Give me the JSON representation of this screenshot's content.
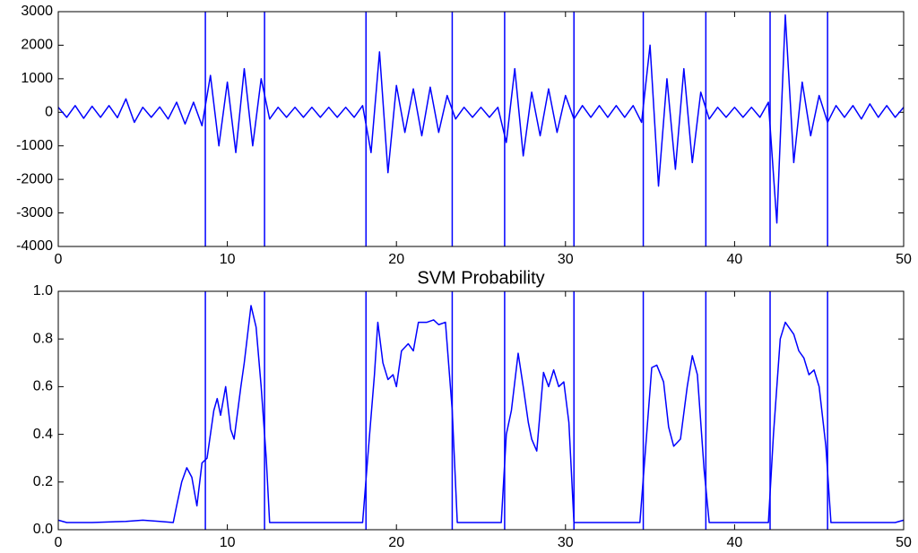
{
  "chart_data": [
    {
      "type": "line",
      "color": "#0000ff",
      "x": [
        0,
        0.5,
        1,
        1.5,
        2,
        2.5,
        3,
        3.5,
        4,
        4.5,
        5,
        5.5,
        6,
        6.5,
        7,
        7.5,
        8,
        8.5,
        9,
        9.5,
        10,
        10.5,
        11,
        11.5,
        12,
        12.5,
        13,
        13.5,
        14,
        14.5,
        15,
        15.5,
        16,
        16.5,
        17,
        17.5,
        18,
        18.5,
        19,
        19.5,
        20,
        20.5,
        21,
        21.5,
        22,
        22.5,
        23,
        23.5,
        24,
        24.5,
        25,
        25.5,
        26,
        26.5,
        27,
        27.5,
        28,
        28.5,
        29,
        29.5,
        30,
        30.5,
        31,
        31.5,
        32,
        32.5,
        33,
        33.5,
        34,
        34.5,
        35,
        35.5,
        36,
        36.5,
        37,
        37.5,
        38,
        38.5,
        39,
        39.5,
        40,
        40.5,
        41,
        41.5,
        42,
        42.5,
        43,
        43.5,
        44,
        44.5,
        45,
        45.5,
        46,
        46.5,
        47,
        47.5,
        48,
        48.5,
        49,
        49.5,
        50
      ],
      "values": [
        150,
        -150,
        200,
        -180,
        180,
        -150,
        200,
        -160,
        400,
        -300,
        150,
        -150,
        160,
        -200,
        300,
        -350,
        300,
        -400,
        1100,
        -1000,
        900,
        -1200,
        1300,
        -1000,
        1000,
        -200,
        150,
        -150,
        150,
        -150,
        150,
        -150,
        150,
        -150,
        150,
        -150,
        200,
        -1200,
        1800,
        -1800,
        800,
        -600,
        700,
        -700,
        750,
        -600,
        500,
        -200,
        150,
        -150,
        150,
        -150,
        150,
        -900,
        1300,
        -1300,
        600,
        -700,
        700,
        -600,
        500,
        -200,
        200,
        -150,
        200,
        -150,
        200,
        -150,
        200,
        -300,
        2000,
        -2200,
        1000,
        -1700,
        1300,
        -1500,
        600,
        -200,
        150,
        -150,
        150,
        -150,
        150,
        -150,
        300,
        -3300,
        2900,
        -1500,
        900,
        -700,
        500,
        -300,
        200,
        -150,
        200,
        -200,
        250,
        -150,
        200,
        -150,
        150
      ],
      "vlines": [
        8.7,
        12.2,
        18.2,
        23.3,
        26.4,
        30.5,
        34.6,
        38.3,
        42.1,
        45.5
      ],
      "xlim": [
        0,
        50
      ],
      "xticks": [
        0,
        10,
        20,
        30,
        40,
        50
      ],
      "ylim": [
        -4000,
        3000
      ],
      "yticks": [
        -4000,
        -3000,
        -2000,
        -1000,
        0,
        1000,
        2000,
        3000
      ]
    },
    {
      "type": "line",
      "title": "SVM Probability",
      "color": "#0000ff",
      "x": [
        0,
        0.5,
        2,
        4,
        5,
        6,
        6.8,
        7,
        7.3,
        7.6,
        7.9,
        8.2,
        8.5,
        8.8,
        9.2,
        9.4,
        9.6,
        9.9,
        10.2,
        10.4,
        10.8,
        11,
        11.4,
        11.7,
        12,
        12.3,
        12.5,
        15,
        18,
        18.3,
        18.7,
        18.9,
        19.2,
        19.5,
        19.8,
        20,
        20.3,
        20.7,
        21,
        21.3,
        21.8,
        22.2,
        22.5,
        22.9,
        23.3,
        23.6,
        26.2,
        26.5,
        26.8,
        27.2,
        27.5,
        27.8,
        28,
        28.3,
        28.7,
        29,
        29.3,
        29.6,
        29.9,
        30.2,
        30.5,
        34.4,
        34.8,
        35.1,
        35.4,
        35.8,
        36.1,
        36.4,
        36.8,
        37.2,
        37.5,
        37.8,
        38.2,
        38.5,
        42,
        42.3,
        42.7,
        43,
        43.5,
        43.8,
        44.1,
        44.4,
        44.7,
        45,
        45.4,
        45.7,
        48,
        49.5,
        50
      ],
      "values": [
        0.04,
        0.03,
        0.03,
        0.035,
        0.04,
        0.035,
        0.03,
        0.1,
        0.2,
        0.26,
        0.22,
        0.1,
        0.28,
        0.3,
        0.5,
        0.55,
        0.48,
        0.6,
        0.42,
        0.38,
        0.6,
        0.7,
        0.94,
        0.85,
        0.6,
        0.3,
        0.03,
        0.03,
        0.03,
        0.3,
        0.65,
        0.87,
        0.7,
        0.63,
        0.65,
        0.6,
        0.75,
        0.78,
        0.75,
        0.87,
        0.87,
        0.88,
        0.86,
        0.87,
        0.5,
        0.03,
        0.03,
        0.4,
        0.5,
        0.74,
        0.6,
        0.45,
        0.38,
        0.33,
        0.66,
        0.6,
        0.67,
        0.6,
        0.62,
        0.45,
        0.03,
        0.03,
        0.4,
        0.68,
        0.69,
        0.62,
        0.43,
        0.35,
        0.38,
        0.6,
        0.73,
        0.65,
        0.25,
        0.03,
        0.03,
        0.4,
        0.8,
        0.87,
        0.82,
        0.75,
        0.72,
        0.65,
        0.67,
        0.6,
        0.35,
        0.03,
        0.03,
        0.03,
        0.04
      ],
      "vlines": [
        8.7,
        12.2,
        18.2,
        23.3,
        26.4,
        30.5,
        34.6,
        38.3,
        42.1,
        45.5
      ],
      "xlim": [
        0,
        50
      ],
      "xticks": [
        0,
        10,
        20,
        30,
        40,
        50
      ],
      "ylim": [
        0,
        1
      ],
      "yticks": [
        {
          "value": 0,
          "label": "0.0"
        },
        0.2,
        0.4,
        0.6,
        0.8,
        {
          "value": 1,
          "label": "1.0"
        }
      ]
    }
  ]
}
